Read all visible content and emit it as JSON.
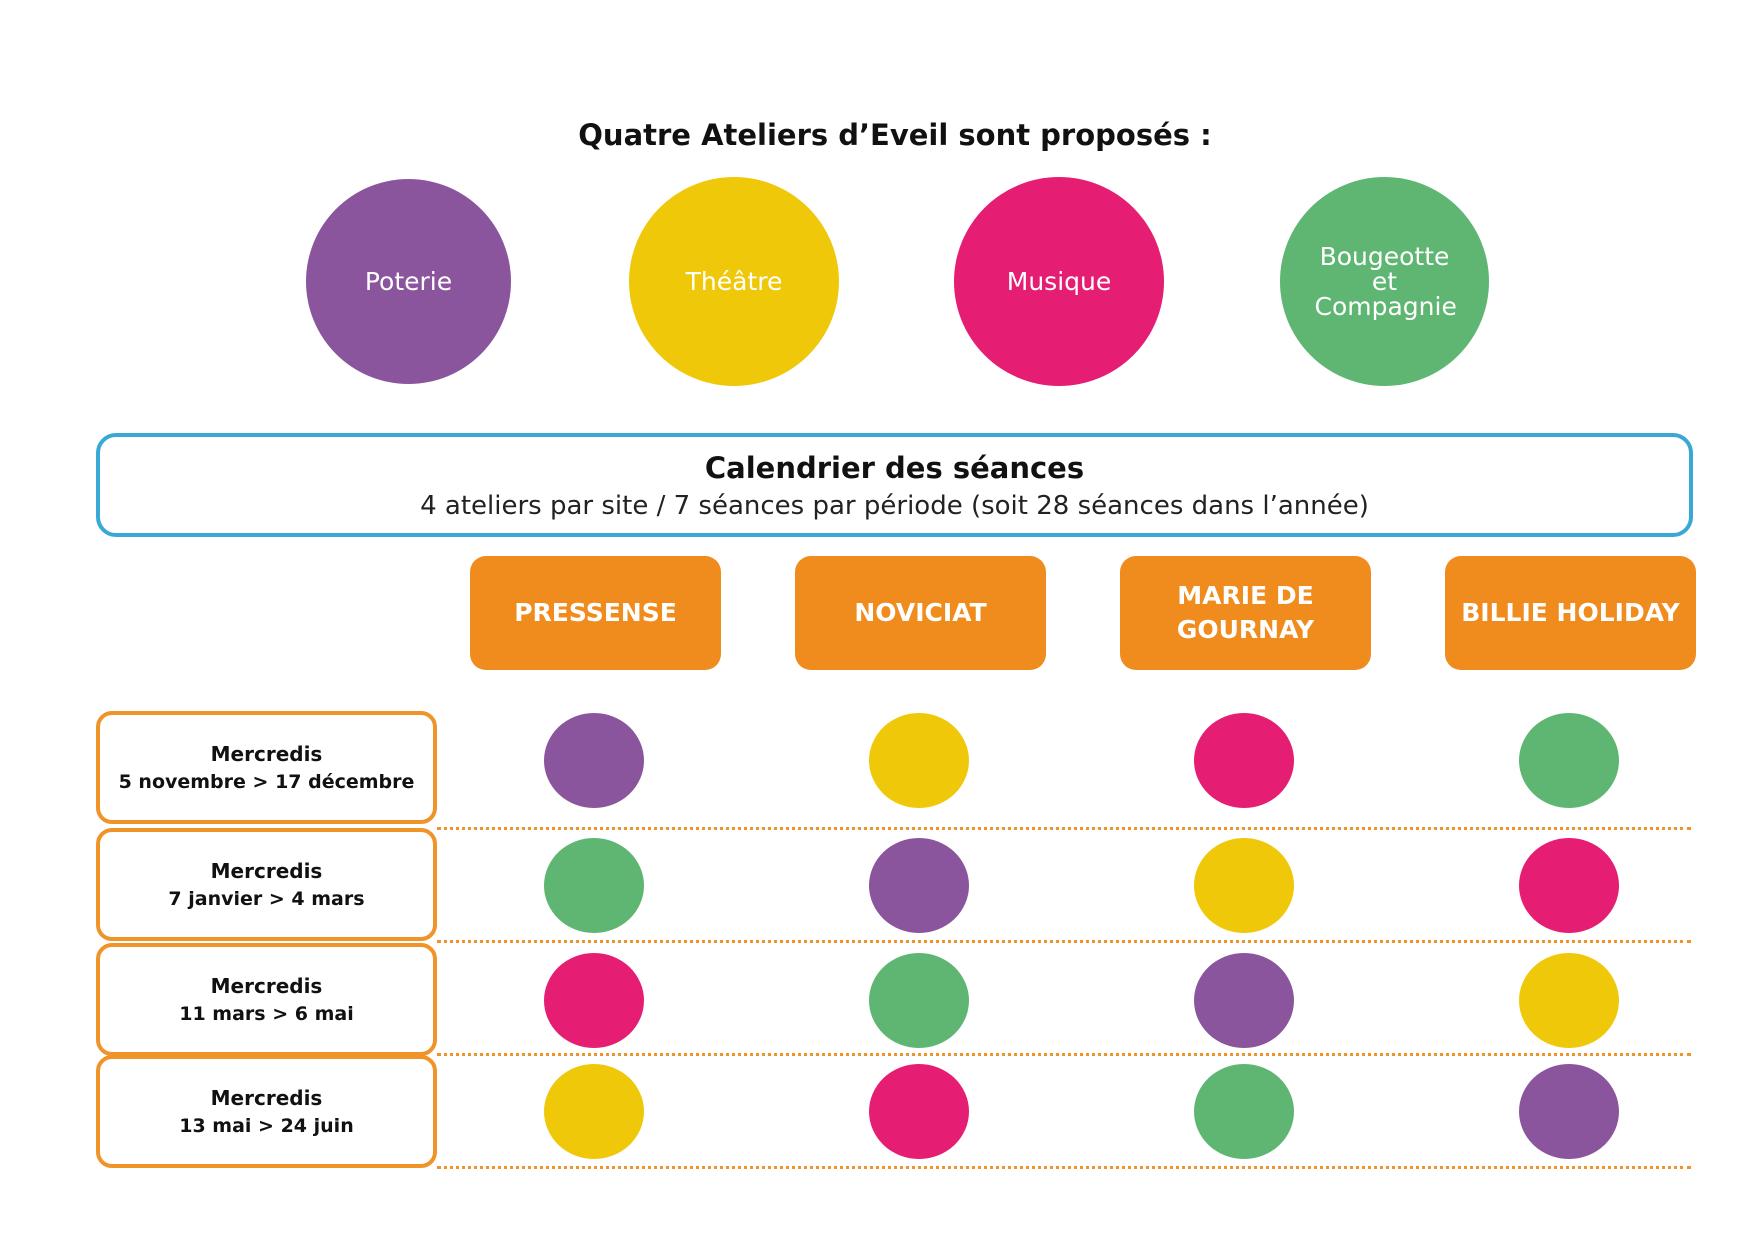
{
  "title": "Quatre Ateliers d’Eveil sont proposés :",
  "ateliers": [
    {
      "label": "Poterie",
      "color": "#8b559d"
    },
    {
      "label": "Théâtre",
      "color": "#f0c80a"
    },
    {
      "label": "Musique",
      "color": "#e51e73"
    },
    {
      "label": "Bougeotte et Compagnie",
      "color": "#5fb672"
    }
  ],
  "calendar": {
    "title": "Calendrier des séances",
    "subtitle": "4 ateliers par site / 7 séances par période (soit 28 séances dans l’année)"
  },
  "sites": [
    "PRESSENSE",
    "NOVICIAT",
    "MARIE DE GOURNAY",
    "BILLIE HOLIDAY"
  ],
  "periods": [
    {
      "label": "Mercredis",
      "dates": "5 novembre > 17 décembre",
      "ateliers": [
        "Poterie",
        "Théâtre",
        "Musique",
        "Bougeotte et Compagnie"
      ]
    },
    {
      "label": "Mercredis",
      "dates": "7 janvier > 4 mars",
      "ateliers": [
        "Bougeotte et Compagnie",
        "Poterie",
        "Théâtre",
        "Musique"
      ]
    },
    {
      "label": "Mercredis",
      "dates": "11 mars > 6 mai",
      "ateliers": [
        "Musique",
        "Bougeotte et Compagnie",
        "Poterie",
        "Théâtre"
      ]
    },
    {
      "label": "Mercredis",
      "dates": "13 mai > 24 juin",
      "ateliers": [
        "Théâtre",
        "Musique",
        "Bougeotte et Compagnie",
        "Poterie"
      ]
    }
  ]
}
